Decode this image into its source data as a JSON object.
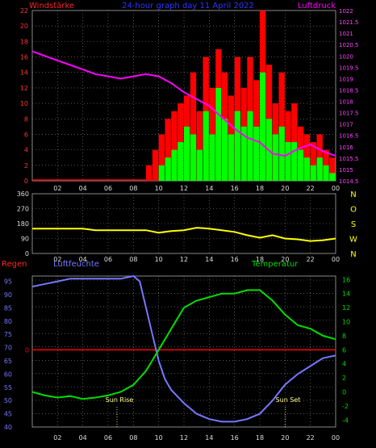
{
  "title": "24-hour graph day  11 April 2022",
  "panel_labels": {
    "wind_left": "Windstärke",
    "wind_right": "Luftdruck",
    "rain": "Regen",
    "humidity": "Luftfeuchte",
    "temperature": "Temperatur",
    "sun_rise": "Sun Rise",
    "sun_set": "Sun Set"
  },
  "colors": {
    "title": "#3333ff",
    "wind_label": "#ff2222",
    "pressure": "#ff00ff",
    "gust": "#ff0000",
    "wind": "#00ff00",
    "direction": "#ffff00",
    "humidity": "#7777ff",
    "temperature": "#00dd00",
    "rain": "#ff0000",
    "grid": "#888888"
  },
  "chart_data": [
    {
      "type": "bar",
      "name": "wind_and_pressure",
      "x_ticks": [
        "02",
        "04",
        "06",
        "08",
        "10",
        "12",
        "14",
        "16",
        "18",
        "20",
        "22",
        "00"
      ],
      "y_left_ticks": [
        "0",
        "2",
        "4",
        "6",
        "8",
        "10",
        "12",
        "14",
        "16",
        "18",
        "20",
        "22"
      ],
      "y_right_ticks": [
        "1014.5",
        "1015",
        "1015.5",
        "1016",
        "1016.5",
        "1017",
        "1017.5",
        "1018",
        "1018.5",
        "1019",
        "1019.5",
        "1020",
        "1020.5",
        "1021",
        "1021.5",
        "1022"
      ],
      "ylim_left": [
        0,
        22
      ],
      "ylim_right": [
        1014.5,
        1022
      ],
      "series": [
        {
          "name": "Luftdruck",
          "kind": "line",
          "x": [
            0,
            1,
            2,
            3,
            4,
            5,
            6,
            7,
            8,
            9,
            10,
            11,
            12,
            13,
            14,
            15,
            16,
            17,
            18,
            19,
            20,
            21,
            22,
            23,
            24
          ],
          "y": [
            1020.2,
            1020.0,
            1019.8,
            1019.6,
            1019.4,
            1019.2,
            1019.1,
            1019.0,
            1019.1,
            1019.2,
            1019.1,
            1018.8,
            1018.4,
            1018.1,
            1017.8,
            1017.3,
            1016.8,
            1016.4,
            1016.2,
            1015.7,
            1015.6,
            1015.9,
            1016.1,
            1015.8,
            1015.6
          ]
        },
        {
          "name": "Böen",
          "kind": "bars",
          "x": [
            9,
            9.5,
            10,
            10.5,
            11,
            11.5,
            12,
            12.5,
            13,
            13.5,
            14,
            14.5,
            15,
            15.5,
            16,
            16.5,
            17,
            17.5,
            18,
            18.5,
            19,
            19.5,
            20,
            20.5,
            21,
            21.5,
            22,
            22.5,
            23,
            23.5
          ],
          "y": [
            2,
            4,
            6,
            8,
            9,
            10,
            11,
            14,
            9,
            16,
            12,
            17,
            14,
            11,
            16,
            12,
            16,
            13,
            22,
            15,
            10,
            14,
            9,
            10,
            7,
            6,
            5,
            6,
            4,
            3
          ]
        },
        {
          "name": "Wind",
          "kind": "bars",
          "x": [
            10,
            10.5,
            11,
            11.5,
            12,
            12.5,
            13,
            13.5,
            14,
            14.5,
            15,
            15.5,
            16,
            16.5,
            17,
            17.5,
            18,
            18.5,
            19,
            19.5,
            20,
            20.5,
            21,
            21.5,
            22,
            22.5,
            23,
            23.5
          ],
          "y": [
            2,
            3,
            4,
            5,
            7,
            6,
            4,
            9,
            6,
            12,
            8,
            6,
            9,
            7,
            9,
            7,
            14,
            8,
            6,
            7,
            5,
            5,
            4,
            3,
            2,
            3,
            2,
            1
          ]
        }
      ]
    },
    {
      "type": "line",
      "name": "wind_direction",
      "x_ticks": [
        "02",
        "04",
        "06",
        "08",
        "10",
        "12",
        "14",
        "16",
        "18",
        "20",
        "22",
        "00"
      ],
      "y_ticks": [
        "0",
        "90",
        "180",
        "270",
        "360"
      ],
      "y_right_labels": [
        "N",
        "W",
        "S",
        "O",
        "N"
      ],
      "ylim": [
        0,
        360
      ],
      "x": [
        0,
        1,
        2,
        3,
        4,
        5,
        6,
        7,
        8,
        9,
        10,
        11,
        12,
        13,
        14,
        15,
        16,
        17,
        18,
        19,
        20,
        21,
        22,
        23,
        24
      ],
      "y": [
        150,
        150,
        150,
        150,
        150,
        140,
        140,
        140,
        140,
        140,
        125,
        135,
        140,
        155,
        150,
        140,
        130,
        110,
        95,
        110,
        90,
        85,
        75,
        80,
        90
      ]
    },
    {
      "type": "line",
      "name": "humidity_temperature",
      "x_ticks": [
        "02",
        "04",
        "06",
        "08",
        "10",
        "12",
        "14",
        "16",
        "18",
        "20",
        "22",
        "00"
      ],
      "y_left_ticks": [
        "40",
        "45",
        "50",
        "55",
        "60",
        "65",
        "70",
        "75",
        "80",
        "85",
        "90",
        "95"
      ],
      "y_right_ticks": [
        "-4",
        "-2",
        "0",
        "2",
        "4",
        "6",
        "8",
        "10",
        "12",
        "14",
        "16"
      ],
      "ylim_left": [
        40,
        97
      ],
      "ylim_right": [
        -5,
        16.5
      ],
      "rain_marker": "0",
      "series": [
        {
          "name": "Luftfeuchte",
          "x": [
            0,
            1,
            2,
            3,
            4,
            5,
            6,
            7,
            8,
            8.5,
            9,
            9.5,
            10,
            10.5,
            11,
            12,
            13,
            14,
            15,
            16,
            17,
            18,
            19,
            20,
            21,
            22,
            23,
            24
          ],
          "y": [
            93,
            94,
            95,
            96,
            96,
            96,
            96,
            96,
            97,
            95,
            85,
            75,
            65,
            58,
            54,
            49,
            45,
            43,
            42,
            42,
            43,
            45,
            50,
            56,
            60,
            63,
            66,
            67
          ]
        },
        {
          "name": "Temperatur",
          "x": [
            0,
            1,
            2,
            3,
            4,
            5,
            6,
            7,
            8,
            9,
            10,
            11,
            12,
            13,
            14,
            15,
            16,
            17,
            18,
            19,
            20,
            21,
            22,
            23,
            24
          ],
          "y": [
            0,
            -0.5,
            -0.8,
            -0.6,
            -1,
            -0.8,
            -0.5,
            0,
            1,
            3,
            6,
            9,
            12,
            13,
            13.5,
            14,
            14,
            14.5,
            14.5,
            13,
            11,
            9.5,
            9,
            8,
            7.5
          ]
        }
      ]
    }
  ]
}
